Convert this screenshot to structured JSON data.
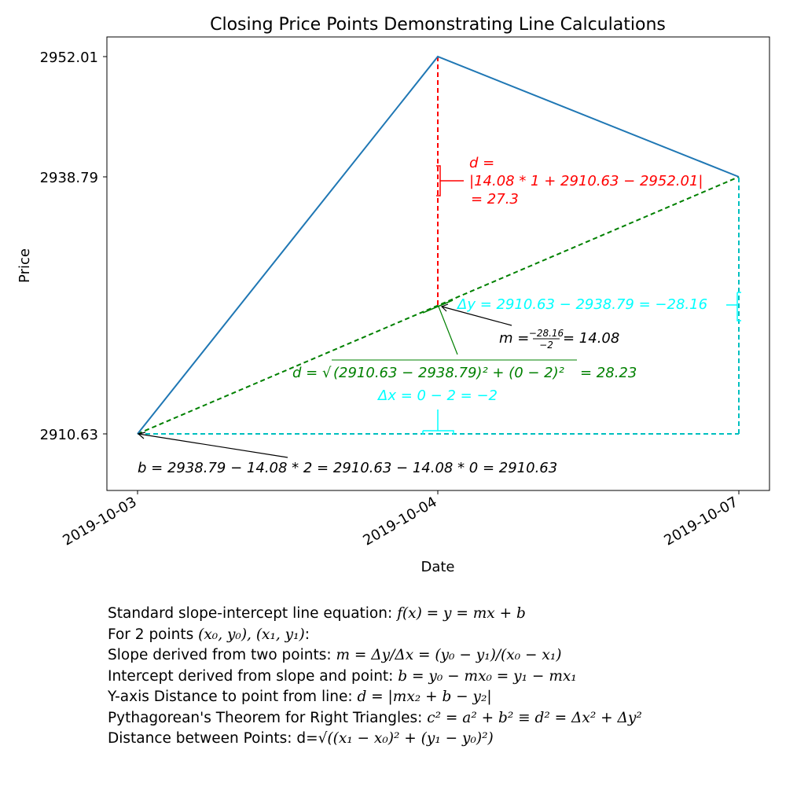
{
  "chart_data": {
    "type": "line",
    "title": "Closing Price Points Demonstrating Line Calculations",
    "xlabel": "Date",
    "ylabel": "Price",
    "x": [
      "2019-10-03",
      "2019-10-04",
      "2019-10-07"
    ],
    "xtick_labels": [
      "2019-10-03",
      "2019-10-04",
      "2019-10-07"
    ],
    "ytick_labels": [
      "2910.63",
      "2938.79",
      "2952.01"
    ],
    "ytick_values": [
      2910.63,
      2938.79,
      2952.01
    ],
    "ylim": [
      2904.1,
      2956.61
    ],
    "grid": false,
    "series": [
      {
        "values": [
          2910.63,
          2952.01,
          2938.79
        ],
        "color": "#1f77b4",
        "style": "solid"
      }
    ],
    "construction_lines": [
      {
        "from": [
          0,
          2910.63
        ],
        "to": [
          2,
          2938.79
        ],
        "color": "#008000",
        "style": "dashed"
      },
      {
        "from": [
          1,
          2952.01
        ],
        "to": [
          1,
          2924.71
        ],
        "color": "#ff0000",
        "style": "dashed"
      },
      {
        "from": [
          0,
          2910.63
        ],
        "to": [
          2,
          2910.63
        ],
        "color": "#00bfbf",
        "style": "dashed"
      },
      {
        "from": [
          2,
          2910.63
        ],
        "to": [
          2,
          2938.79
        ],
        "color": "#00bfbf",
        "style": "dashed"
      }
    ],
    "annotations": {
      "distance_label_1": "d =",
      "distance_label_2": "|14.08 * 1 + 2910.63 − 2952.01|",
      "distance_label_3": "= 27.3",
      "delta_y": "Δy = 2910.63 − 2938.79 = −28.16",
      "slope_left": "m =",
      "slope_num": "−28.16",
      "slope_den": "−2",
      "slope_right": "= 14.08",
      "hyp_left": "d = √",
      "hyp_inner": "(2910.63 − 2938.79)² + (0 − 2)²",
      "hyp_right": "= 28.23",
      "delta_x": "Δx = 0 − 2 = −2",
      "intercept": "b = 2938.79 − 14.08 * 2 = 2910.63 − 14.08 * 0 = 2910.63"
    },
    "colors": {
      "series": "#1f77b4",
      "distance": "#ff0000",
      "hypotenuse": "#008000",
      "delta": "#00ffff",
      "delta_line": "#00bfbf",
      "arrow": "#000000"
    }
  },
  "footnotes": {
    "line1_text": "Standard slope-intercept line equation: ",
    "line1_math": "f(x) = y = mx + b",
    "line2_text": "For 2 points ",
    "line2_math": "(x₀, y₀), (x₁, y₁)",
    "line2_end": ":",
    "line3_text": "Slope derived from two points: ",
    "line3_math": "m = Δy/Δx = (y₀ − y₁)/(x₀ − x₁)",
    "line4_text": "Intercept derived from slope and point: ",
    "line4_math": "b = y₀ − mx₀ = y₁ − mx₁",
    "line5_text": "Y-axis Distance to point from line: ",
    "line5_math": "d = |mx₂ + b − y₂|",
    "line6_text": "Pythagorean's Theorem for Right Triangles: ",
    "line6_math": "c² = a² + b² ≡ d² = Δx² + Δy²",
    "line7_text": "Distance between Points: d=",
    "line7_math": "√((x₁ − x₀)² + (y₁ − y₀)²)"
  }
}
